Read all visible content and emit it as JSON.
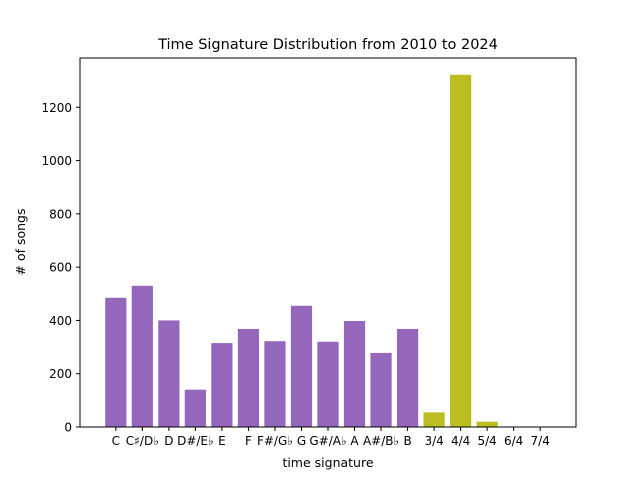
{
  "chart_data": {
    "type": "bar",
    "title": "Time Signature Distribution from 2010 to 2024",
    "xlabel": "time signature",
    "ylabel": "# of songs",
    "categories": [
      "C",
      "C♯/D♭",
      "D",
      "D#/E♭",
      "E",
      "F",
      "F#/G♭",
      "G",
      "G#/A♭",
      "A",
      "A#/B♭",
      "B",
      "3/4",
      "4/4",
      "5/4",
      "6/4",
      "7/4"
    ],
    "values": [
      485,
      530,
      400,
      140,
      315,
      368,
      322,
      455,
      320,
      398,
      278,
      368,
      55,
      1322,
      20,
      0,
      0
    ],
    "colors": [
      "#9467bd",
      "#9467bd",
      "#9467bd",
      "#9467bd",
      "#9467bd",
      "#9467bd",
      "#9467bd",
      "#9467bd",
      "#9467bd",
      "#9467bd",
      "#9467bd",
      "#9467bd",
      "#bcbd22",
      "#bcbd22",
      "#bcbd22",
      "#bcbd22",
      "#bcbd22"
    ],
    "ylim": [
      0,
      1385
    ],
    "yticks": [
      0,
      200,
      400,
      600,
      800,
      1000,
      1200
    ],
    "grid": false
  }
}
